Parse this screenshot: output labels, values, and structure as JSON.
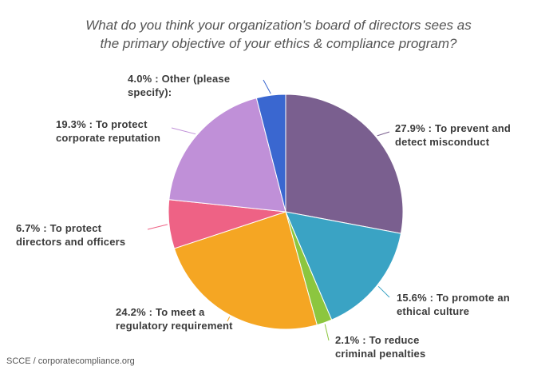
{
  "chart_data": {
    "type": "pie",
    "title": "What do you think your organization’s board of directors sees as the primary objective of your ethics & compliance program?",
    "title_lines": [
      "What do you think your organization’s board of directors sees as",
      "the primary objective of your ethics & compliance program?"
    ],
    "slices": [
      {
        "value": 27.9,
        "label_lines": [
          "27.9% : To prevent and",
          "detect misconduct"
        ],
        "color": "#7a5f8f"
      },
      {
        "value": 15.6,
        "label_lines": [
          "15.6% : To promote an",
          "ethical culture"
        ],
        "color": "#3aa3c4"
      },
      {
        "value": 2.1,
        "label_lines": [
          "2.1% : To reduce",
          "criminal penalties"
        ],
        "color": "#8cc63f"
      },
      {
        "value": 24.2,
        "label_lines": [
          "24.2% : To meet a",
          "regulatory requirement"
        ],
        "color": "#f5a623"
      },
      {
        "value": 6.7,
        "label_lines": [
          "6.7% : To protect",
          "directors and officers"
        ],
        "color": "#ee6285"
      },
      {
        "value": 19.3,
        "label_lines": [
          "19.3% : To protect",
          "corporate reputation"
        ],
        "color": "#c090d8"
      },
      {
        "value": 4.0,
        "label_lines": [
          "4.0% : Other (please",
          "specify):"
        ],
        "color": "#3a67d0"
      }
    ],
    "legend": "none"
  },
  "source": "SCCE / corporatecompliance.org"
}
